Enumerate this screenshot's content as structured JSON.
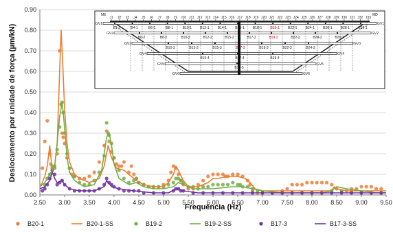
{
  "chart_data": {
    "type": "line",
    "xlabel": "Frequência (Hz)",
    "ylabel": "Deslocamento por unidade de força  (µm/kN)",
    "xlim": [
      2.5,
      9.5
    ],
    "ylim": [
      0,
      0.9
    ],
    "x_ticks": [
      "2.50",
      "3.00",
      "3.50",
      "4.00",
      "4.50",
      "5.00",
      "5.50",
      "6.00",
      "6.50",
      "7.00",
      "7.50",
      "8.00",
      "8.50",
      "9.00",
      "9.50"
    ],
    "y_ticks": [
      "0.00",
      "0.10",
      "0.20",
      "0.30",
      "0.40",
      "0.50",
      "0.60",
      "0.70",
      "0.80",
      "0.90"
    ],
    "grid": "horizontal",
    "legend_position": "bottom",
    "colors": {
      "b20": "#ed7d31",
      "b19": "#70ad47",
      "b17": "#7030a0"
    },
    "series": [
      {
        "name": "B20-1",
        "style": "markers",
        "color": "#ed7d31",
        "x": [
          2.55,
          2.6,
          2.65,
          2.7,
          2.72,
          2.75,
          2.8,
          2.85,
          2.9,
          2.93,
          2.95,
          2.97,
          3.0,
          3.05,
          3.1,
          3.15,
          3.2,
          3.3,
          3.4,
          3.5,
          3.6,
          3.7,
          3.8,
          3.85,
          3.9,
          3.95,
          4.0,
          4.05,
          4.1,
          4.15,
          4.2,
          4.3,
          4.35,
          4.4,
          4.45,
          4.5,
          4.6,
          4.7,
          4.8,
          4.9,
          5.0,
          5.1,
          5.15,
          5.2,
          5.25,
          5.3,
          5.35,
          5.4,
          5.5,
          5.6,
          5.7,
          5.8,
          5.9,
          6.0,
          6.1,
          6.2,
          6.25,
          6.3,
          6.4,
          6.5,
          6.6,
          6.7,
          6.75,
          6.8,
          6.9,
          7.0,
          7.2,
          7.4,
          7.5,
          7.6,
          7.7,
          7.8,
          7.9,
          8.0,
          8.1,
          8.2,
          8.3,
          8.4,
          8.5,
          8.6,
          8.7,
          8.8,
          8.9,
          9.0,
          9.1,
          9.2,
          9.3,
          9.4
        ],
        "y": [
          0.13,
          0.26,
          0.36,
          0.2,
          0.15,
          0.13,
          0.14,
          0.2,
          0.7,
          0.44,
          0.3,
          0.28,
          0.25,
          0.18,
          0.13,
          0.1,
          0.09,
          0.08,
          0.08,
          0.09,
          0.11,
          0.16,
          0.24,
          0.31,
          0.26,
          0.21,
          0.18,
          0.15,
          0.14,
          0.14,
          0.16,
          0.11,
          0.14,
          0.1,
          0.08,
          0.06,
          0.05,
          0.04,
          0.04,
          0.04,
          0.05,
          0.07,
          0.11,
          0.14,
          0.13,
          0.1,
          0.07,
          0.05,
          0.03,
          0.03,
          0.05,
          0.07,
          0.09,
          0.1,
          0.1,
          0.1,
          0.09,
          0.09,
          0.1,
          0.1,
          0.09,
          0.07,
          0.05,
          0.02,
          0.01,
          0.01,
          0.01,
          0.02,
          0.03,
          0.05,
          0.05,
          0.05,
          0.06,
          0.06,
          0.06,
          0.06,
          0.06,
          0.05,
          0.03,
          0.02,
          0.02,
          0.03,
          0.03,
          0.04,
          0.04,
          0.04,
          0.03,
          0.03
        ]
      },
      {
        "name": "B20-1-SS",
        "style": "line",
        "color": "#ed7d31",
        "x": [
          2.5,
          2.55,
          2.6,
          2.65,
          2.7,
          2.75,
          2.8,
          2.85,
          2.9,
          2.93,
          2.96,
          3.0,
          3.05,
          3.1,
          3.2,
          3.3,
          3.5,
          3.7,
          3.8,
          3.88,
          3.95,
          4.05,
          4.2,
          4.35,
          4.45,
          4.6,
          4.8,
          5.0,
          5.1,
          5.2,
          5.25,
          5.3,
          5.4,
          5.5,
          5.7,
          5.9,
          6.0,
          6.1,
          6.3,
          6.5,
          6.65,
          6.75,
          6.85,
          7.0,
          7.3,
          7.6,
          7.8,
          8.0,
          8.2,
          8.4,
          8.45,
          8.5,
          8.7,
          9.0,
          9.2,
          9.5
        ],
        "y": [
          0.04,
          0.06,
          0.09,
          0.14,
          0.24,
          0.12,
          0.14,
          0.25,
          0.6,
          0.8,
          0.65,
          0.42,
          0.25,
          0.16,
          0.1,
          0.08,
          0.06,
          0.08,
          0.14,
          0.24,
          0.18,
          0.13,
          0.12,
          0.09,
          0.07,
          0.05,
          0.04,
          0.04,
          0.06,
          0.1,
          0.14,
          0.12,
          0.07,
          0.04,
          0.04,
          0.06,
          0.08,
          0.08,
          0.09,
          0.09,
          0.08,
          0.06,
          0.03,
          0.02,
          0.02,
          0.02,
          0.02,
          0.02,
          0.02,
          0.02,
          0.04,
          0.03,
          0.02,
          0.02,
          0.02,
          0.02
        ]
      },
      {
        "name": "B19-2",
        "style": "markers",
        "color": "#70ad47",
        "x": [
          2.6,
          2.65,
          2.7,
          2.75,
          2.8,
          2.85,
          2.9,
          2.93,
          2.95,
          2.97,
          3.0,
          3.05,
          3.1,
          3.2,
          3.3,
          3.4,
          3.5,
          3.6,
          3.7,
          3.8,
          3.85,
          3.88,
          3.9,
          3.95,
          4.0,
          4.1,
          4.2,
          4.3,
          4.4,
          4.45,
          4.5,
          4.6,
          4.7,
          4.8,
          4.9,
          5.0,
          5.1,
          5.2,
          5.25,
          5.3,
          5.35,
          5.4,
          5.5,
          5.6,
          5.7,
          5.8,
          5.9,
          6.0,
          6.1,
          6.2,
          6.3,
          6.4,
          6.5,
          6.55,
          6.6,
          6.7,
          6.8,
          6.9,
          7.0,
          7.2,
          7.4,
          7.6,
          7.8,
          8.0,
          8.2,
          8.4,
          8.6,
          8.8,
          9.0,
          9.2,
          9.4
        ],
        "y": [
          0.05,
          0.08,
          0.1,
          0.14,
          0.13,
          0.22,
          0.33,
          0.44,
          0.45,
          0.4,
          0.3,
          0.2,
          0.13,
          0.09,
          0.06,
          0.05,
          0.05,
          0.07,
          0.11,
          0.19,
          0.35,
          0.3,
          0.29,
          0.25,
          0.18,
          0.12,
          0.08,
          0.06,
          0.07,
          0.08,
          0.06,
          0.05,
          0.04,
          0.04,
          0.04,
          0.04,
          0.05,
          0.06,
          0.08,
          0.08,
          0.07,
          0.06,
          0.04,
          0.04,
          0.03,
          0.04,
          0.04,
          0.05,
          0.05,
          0.05,
          0.05,
          0.06,
          0.05,
          0.05,
          0.04,
          0.04,
          0.03,
          0.02,
          0.01,
          0.01,
          0.01,
          0.01,
          0.01,
          0.01,
          0.01,
          0.02,
          0.02,
          0.02,
          0.01,
          0.01,
          0.01
        ]
      },
      {
        "name": "B19-2-SS",
        "style": "line",
        "color": "#70ad47",
        "x": [
          2.5,
          2.6,
          2.7,
          2.75,
          2.8,
          2.85,
          2.9,
          2.95,
          2.98,
          3.05,
          3.1,
          3.2,
          3.4,
          3.6,
          3.75,
          3.85,
          3.9,
          3.95,
          4.0,
          4.1,
          4.3,
          4.45,
          4.6,
          4.8,
          5.0,
          5.2,
          5.3,
          5.4,
          5.6,
          6.0,
          6.4,
          6.6,
          6.8,
          7.0,
          7.4,
          7.8,
          8.2,
          8.4,
          8.5,
          8.7,
          9.0,
          9.3,
          9.5
        ],
        "y": [
          0.04,
          0.06,
          0.1,
          0.12,
          0.14,
          0.25,
          0.38,
          0.45,
          0.38,
          0.18,
          0.11,
          0.07,
          0.04,
          0.05,
          0.12,
          0.28,
          0.3,
          0.24,
          0.15,
          0.08,
          0.05,
          0.06,
          0.04,
          0.03,
          0.03,
          0.04,
          0.06,
          0.05,
          0.03,
          0.03,
          0.04,
          0.04,
          0.03,
          0.02,
          0.01,
          0.01,
          0.01,
          0.02,
          0.04,
          0.03,
          0.02,
          0.01,
          0.01
        ]
      },
      {
        "name": "B17-3",
        "style": "markers",
        "color": "#7030a0",
        "x": [
          2.55,
          2.6,
          2.65,
          2.7,
          2.75,
          2.8,
          2.85,
          2.9,
          2.95,
          3.0,
          3.1,
          3.2,
          3.3,
          3.4,
          3.5,
          3.6,
          3.7,
          3.8,
          3.85,
          3.9,
          3.95,
          4.0,
          4.1,
          4.2,
          4.3,
          4.4,
          4.5,
          4.6,
          4.8,
          5.0,
          5.2,
          5.25,
          5.3,
          5.35,
          5.4,
          5.6,
          5.8,
          6.0,
          6.2,
          6.4,
          6.6,
          6.8,
          7.0,
          7.2,
          7.4,
          7.6,
          7.8,
          8.0,
          8.2,
          8.4,
          8.6,
          8.8,
          9.0,
          9.2,
          9.4
        ],
        "y": [
          0.02,
          0.03,
          0.05,
          0.08,
          0.12,
          0.1,
          0.05,
          0.06,
          0.07,
          0.05,
          0.03,
          0.02,
          0.02,
          0.02,
          0.02,
          0.02,
          0.03,
          0.05,
          0.08,
          0.06,
          0.05,
          0.04,
          0.03,
          0.02,
          0.02,
          0.02,
          0.02,
          0.01,
          0.01,
          0.01,
          0.02,
          0.03,
          0.03,
          0.02,
          0.02,
          0.01,
          0.01,
          0.01,
          0.01,
          0.01,
          0.01,
          0.01,
          0.01,
          0.01,
          0.01,
          0.01,
          0.01,
          0.01,
          0.01,
          0.01,
          0.01,
          0.01,
          0.01,
          0.01,
          0.01
        ]
      },
      {
        "name": "B17-3-SS",
        "style": "line",
        "color": "#7030a0",
        "x": [
          2.5,
          2.6,
          2.7,
          2.75,
          2.8,
          2.85,
          2.95,
          3.0,
          3.1,
          3.3,
          3.6,
          3.8,
          3.85,
          3.95,
          4.1,
          4.4,
          4.8,
          5.1,
          5.25,
          5.3,
          5.4,
          5.7,
          6.0,
          6.5,
          7.0,
          7.5,
          8.0,
          8.5,
          9.0,
          9.5
        ],
        "y": [
          0.03,
          0.04,
          0.07,
          0.11,
          0.08,
          0.06,
          0.07,
          0.05,
          0.03,
          0.02,
          0.02,
          0.04,
          0.07,
          0.04,
          0.03,
          0.02,
          0.01,
          0.01,
          0.03,
          0.03,
          0.02,
          0.01,
          0.01,
          0.01,
          0.01,
          0.01,
          0.01,
          0.01,
          0.01,
          0.01
        ]
      }
    ]
  },
  "inset": {
    "left_end": "ME",
    "right_end": "MD",
    "top_ticks": [
      "J1",
      "J2",
      "J3",
      "J4",
      "J5",
      "J6",
      "J7",
      "J8",
      "J9",
      "J10",
      "J11",
      "J12",
      "J13",
      "J14",
      "J15",
      "J16",
      "J17",
      "J18",
      "J19",
      "J20",
      "J21",
      "J22",
      "J23",
      "J24",
      "J25",
      "J26",
      "J27",
      "J28",
      "J29",
      "J30",
      "J31",
      "J32",
      "J33"
    ],
    "girders_left": [
      "GV1",
      "GV2",
      "GV3",
      "GV4",
      "GV5",
      "GV6"
    ],
    "girders_right": [
      "GV1",
      "GV2",
      "GV3",
      "GV4",
      "GV5",
      "GV6"
    ],
    "row1": [
      "B1-1",
      "B4-1",
      "B6-1",
      "B8-1",
      "B10-1",
      "B12-1",
      "B14-1",
      "B16-1",
      "B18-1",
      "B20-1",
      "B22-1",
      "B24-1",
      "B26-1",
      "B28-1",
      "B30-1"
    ],
    "row2": [
      "B6-2",
      "B8-2",
      "B10-2",
      "B12-2",
      "B15-2",
      "B17-2",
      "B19-2",
      "B22-2",
      "B24-2",
      "B26-2"
    ],
    "row3": [
      "B10-3",
      "B13-3",
      "B15-3",
      "B17-3",
      "B19-3",
      "B22-3",
      "B24-3"
    ],
    "row4": [
      "B15-4",
      "B17-4",
      "B19-4"
    ],
    "row5": [
      "B17-5"
    ],
    "highlight": [
      "B20-1",
      "B19-2",
      "B17-3"
    ]
  }
}
